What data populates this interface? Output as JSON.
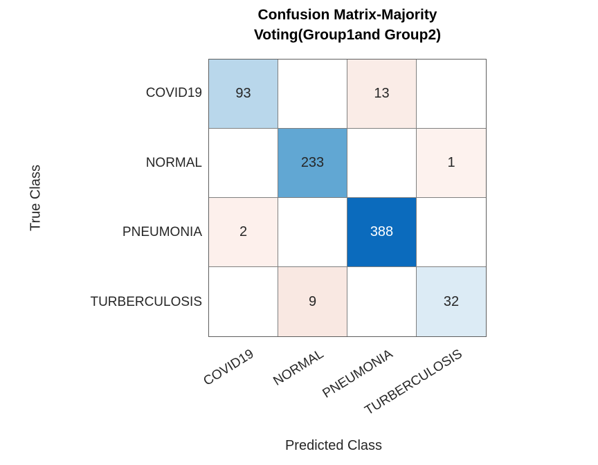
{
  "title": {
    "line1": "Confusion Matrix-Majority",
    "line2": "Voting(Group1and Group2)"
  },
  "y_axis": {
    "label": "True Class"
  },
  "x_axis": {
    "label": "Predicted Class"
  },
  "row_labels": [
    "COVID19",
    "NORMAL",
    "PNEUMONIA",
    "TURBERCULOSIS"
  ],
  "col_labels": [
    "COVID19",
    "NORMAL",
    "PNEUMONIA",
    "TURBERCULOSIS"
  ],
  "colors": {
    "diagonal_strong": "#0b6bbd",
    "diagonal_medium": "#61a7d3",
    "diagonal_light": "#b9d7eb",
    "diagonal_faint": "#dcebf5",
    "offdiag_light": "#faece7",
    "offdiag_medium": "#f9e8e2",
    "offdiag_faint": "#fdf0ec",
    "empty": "#ffffff",
    "grid_line": "#7f7f7f",
    "outer_border": "#5e5e5e",
    "text": "#262626",
    "text_on_dark": "#ffffff"
  },
  "cells": [
    {
      "label": "93",
      "bg": "#b9d7eb",
      "fg": "#262626"
    },
    {
      "label": "",
      "bg": "#ffffff",
      "fg": "#262626"
    },
    {
      "label": "13",
      "bg": "#faece7",
      "fg": "#262626"
    },
    {
      "label": "",
      "bg": "#ffffff",
      "fg": "#262626"
    },
    {
      "label": "",
      "bg": "#ffffff",
      "fg": "#262626"
    },
    {
      "label": "233",
      "bg": "#61a7d3",
      "fg": "#262626"
    },
    {
      "label": "",
      "bg": "#ffffff",
      "fg": "#262626"
    },
    {
      "label": "1",
      "bg": "#fdf2ee",
      "fg": "#262626"
    },
    {
      "label": "2",
      "bg": "#fdf0ec",
      "fg": "#262626"
    },
    {
      "label": "",
      "bg": "#ffffff",
      "fg": "#262626"
    },
    {
      "label": "388",
      "bg": "#0b6bbd",
      "fg": "#ffffff"
    },
    {
      "label": "",
      "bg": "#ffffff",
      "fg": "#262626"
    },
    {
      "label": "",
      "bg": "#ffffff",
      "fg": "#262626"
    },
    {
      "label": "9",
      "bg": "#f9e8e2",
      "fg": "#262626"
    },
    {
      "label": "",
      "bg": "#ffffff",
      "fg": "#262626"
    },
    {
      "label": "32",
      "bg": "#dcebf5",
      "fg": "#262626"
    }
  ],
  "chart_data": {
    "type": "heatmap",
    "title": "Confusion Matrix-Majority Voting(Group1and Group2)",
    "xlabel": "Predicted Class",
    "ylabel": "True Class",
    "x_categories": [
      "COVID19",
      "NORMAL",
      "PNEUMONIA",
      "TURBERCULOSIS"
    ],
    "y_categories": [
      "COVID19",
      "NORMAL",
      "PNEUMONIA",
      "TURBERCULOSIS"
    ],
    "matrix": [
      [
        93,
        null,
        13,
        null
      ],
      [
        null,
        233,
        null,
        1
      ],
      [
        2,
        null,
        388,
        null
      ],
      [
        null,
        9,
        null,
        32
      ]
    ],
    "legend": "none",
    "grid": true,
    "colormap": "diagonal cells shaded blue by value, off-diagonal cells shaded light red by value, empty cells white"
  }
}
